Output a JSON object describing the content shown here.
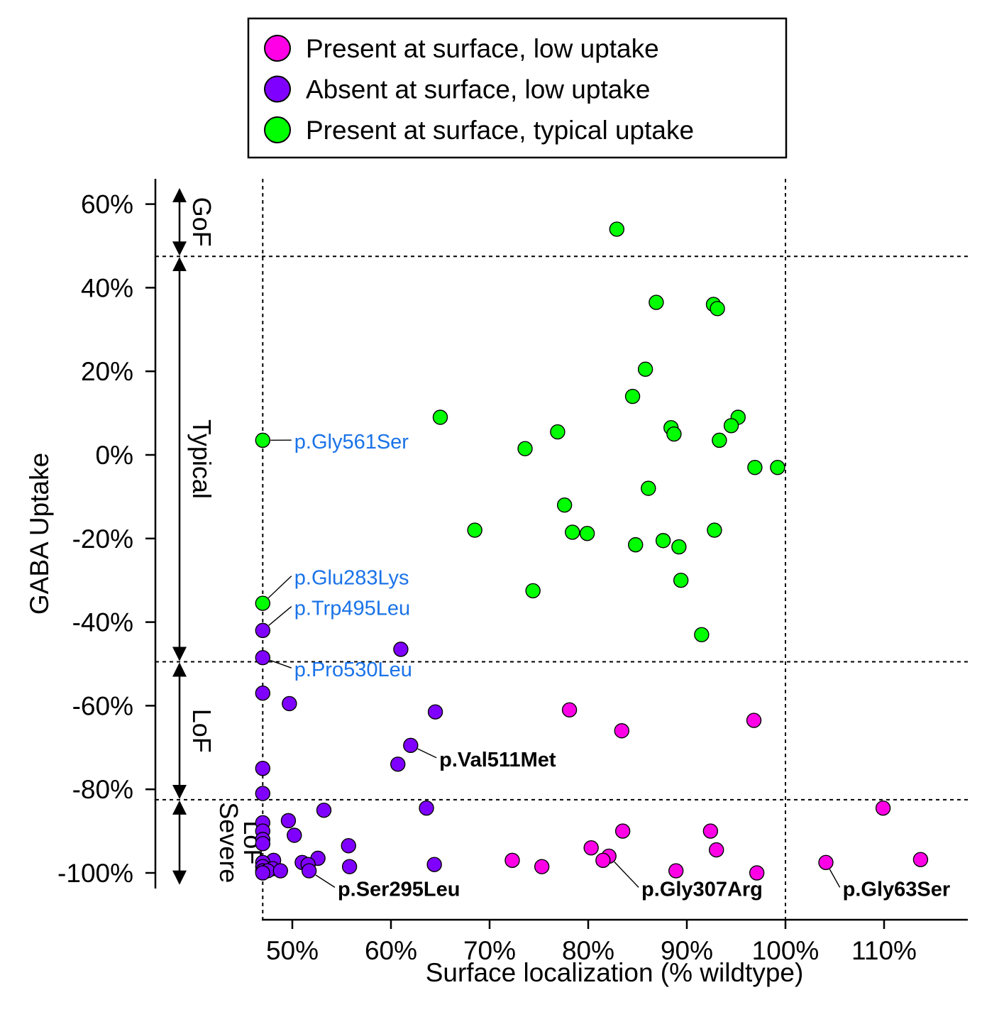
{
  "chart_data": {
    "type": "scatter",
    "xlabel": "Surface localization (% wildtype)",
    "ylabel": "GABA Uptake",
    "xlim": [
      46.5,
      118
    ],
    "ylim": [
      -103,
      66
    ],
    "x_ticks": [
      50,
      60,
      70,
      80,
      90,
      100,
      110
    ],
    "x_tick_labels": [
      "50%",
      "60%",
      "70%",
      "80%",
      "90%",
      "100%",
      "110%"
    ],
    "y_ticks": [
      60,
      40,
      20,
      0,
      -20,
      -40,
      -60,
      -80,
      -100
    ],
    "y_tick_labels": [
      "60%",
      "40%",
      "20%",
      "0%",
      "-20%",
      "-40%",
      "-60%",
      "-80%",
      "-100%"
    ],
    "reference_lines": {
      "vertical": [
        47,
        100
      ],
      "horizontal": [
        47.5,
        -49.5,
        -82.5
      ]
    },
    "regions": [
      {
        "label": "GoF",
        "from": 64,
        "to": 47.5
      },
      {
        "label": "Typical",
        "from": 47.5,
        "to": -49.5
      },
      {
        "label": "LoF",
        "from": -49.5,
        "to": -82.5
      },
      {
        "label_lines": [
          "Severe",
          "LoF"
        ],
        "from": -82.5,
        "to": -103
      }
    ],
    "legend": {
      "placement": "top",
      "entries": [
        {
          "label": "Present at surface, low uptake",
          "color": "#ff00e6"
        },
        {
          "label": "Absent at surface, low uptake",
          "color": "#8000ff"
        },
        {
          "label": "Present at surface, typical uptake",
          "color": "#00ff00"
        }
      ]
    },
    "series": [
      {
        "name": "Present at surface, typical uptake",
        "color": "#00ff00",
        "points": [
          [
            82.9,
            54
          ],
          [
            86.9,
            36.5
          ],
          [
            92.7,
            36
          ],
          [
            93.1,
            35
          ],
          [
            85.8,
            20.5
          ],
          [
            84.5,
            14
          ],
          [
            65,
            9
          ],
          [
            95.2,
            9
          ],
          [
            94.5,
            7
          ],
          [
            88.4,
            6.5
          ],
          [
            76.9,
            5.5
          ],
          [
            88.7,
            5
          ],
          [
            93.3,
            3.5
          ],
          [
            47,
            3.5
          ],
          [
            73.6,
            1.5
          ],
          [
            96.9,
            -3
          ],
          [
            99.2,
            -3
          ],
          [
            86.1,
            -8
          ],
          [
            77.6,
            -12
          ],
          [
            68.5,
            -18
          ],
          [
            78.4,
            -18.5
          ],
          [
            79.9,
            -18.8
          ],
          [
            92.8,
            -18
          ],
          [
            87.6,
            -20.5
          ],
          [
            84.8,
            -21.5
          ],
          [
            89.2,
            -22
          ],
          [
            89.4,
            -30
          ],
          [
            74.4,
            -32.5
          ],
          [
            47,
            -35.5
          ],
          [
            91.5,
            -43
          ]
        ]
      },
      {
        "name": "Absent at surface, low uptake",
        "color": "#8000ff",
        "points": [
          [
            47,
            -42
          ],
          [
            61,
            -46.5
          ],
          [
            47,
            -48.5
          ],
          [
            47,
            -57
          ],
          [
            49.7,
            -59.5
          ],
          [
            64.5,
            -61.5
          ],
          [
            62,
            -69.5
          ],
          [
            60.7,
            -74
          ],
          [
            47,
            -75
          ],
          [
            47,
            -81
          ],
          [
            63.6,
            -84.5
          ],
          [
            53.2,
            -85
          ],
          [
            47,
            -88
          ],
          [
            49.6,
            -87.5
          ],
          [
            47,
            -90
          ],
          [
            50.2,
            -91
          ],
          [
            47,
            -92
          ],
          [
            47,
            -93
          ],
          [
            55.7,
            -93.5
          ],
          [
            52.6,
            -96.5
          ],
          [
            48.1,
            -97
          ],
          [
            47,
            -97.5
          ],
          [
            51,
            -97.5
          ],
          [
            51.6,
            -98
          ],
          [
            64.4,
            -98
          ],
          [
            55.8,
            -98.5
          ],
          [
            47,
            -98.5
          ],
          [
            48,
            -99
          ],
          [
            47,
            -99.5
          ],
          [
            47.5,
            -99.5
          ],
          [
            51.7,
            -99.5
          ],
          [
            48.8,
            -99.5
          ],
          [
            47,
            -100
          ]
        ]
      },
      {
        "name": "Present at surface, low uptake",
        "color": "#ff00e6",
        "points": [
          [
            78.1,
            -61
          ],
          [
            96.8,
            -63.5
          ],
          [
            83.4,
            -66
          ],
          [
            109.9,
            -84.5
          ],
          [
            83.5,
            -90
          ],
          [
            92.4,
            -90
          ],
          [
            80.3,
            -94
          ],
          [
            93,
            -94.5
          ],
          [
            82.1,
            -96
          ],
          [
            81.5,
            -97
          ],
          [
            113.7,
            -96.8
          ],
          [
            72.3,
            -97
          ],
          [
            104.1,
            -97.5
          ],
          [
            75.3,
            -98.5
          ],
          [
            88.9,
            -99.5
          ],
          [
            97.1,
            -100
          ]
        ]
      }
    ],
    "annotations": [
      {
        "text": "p.Gly561Ser",
        "point": [
          47,
          3.5
        ],
        "label_at": [
          50.2,
          1.5
        ],
        "color": "#1a73e8",
        "bold": false
      },
      {
        "text": "p.Glu283Lys",
        "point": [
          47,
          -35.5
        ],
        "label_at": [
          50.2,
          -31
        ],
        "color": "#1a73e8",
        "bold": false
      },
      {
        "text": "p.Trp495Leu",
        "point": [
          47,
          -42
        ],
        "label_at": [
          50.2,
          -38.3
        ],
        "color": "#1a73e8",
        "bold": false
      },
      {
        "text": "p.Pro530Leu",
        "point": [
          47,
          -48.5
        ],
        "label_at": [
          50.2,
          -53
        ],
        "color": "#1a73e8",
        "bold": false
      },
      {
        "text": "p.Val511Met",
        "point": [
          62,
          -69.5
        ],
        "label_at": [
          64.9,
          -74.5
        ],
        "color": "#000000",
        "bold": true
      },
      {
        "text": "p.Ser295Leu",
        "point": [
          51.7,
          -99.5
        ],
        "label_at": [
          54.6,
          -105.5
        ],
        "color": "#000000",
        "bold": true
      },
      {
        "text": "p.Gly307Arg",
        "point": [
          82.1,
          -96
        ],
        "label_at": [
          85.4,
          -105.5
        ],
        "color": "#000000",
        "bold": true
      },
      {
        "text": "p.Gly63Ser",
        "point": [
          104.1,
          -97.5
        ],
        "label_at": [
          105.8,
          -105.5
        ],
        "color": "#000000",
        "bold": true
      }
    ]
  }
}
